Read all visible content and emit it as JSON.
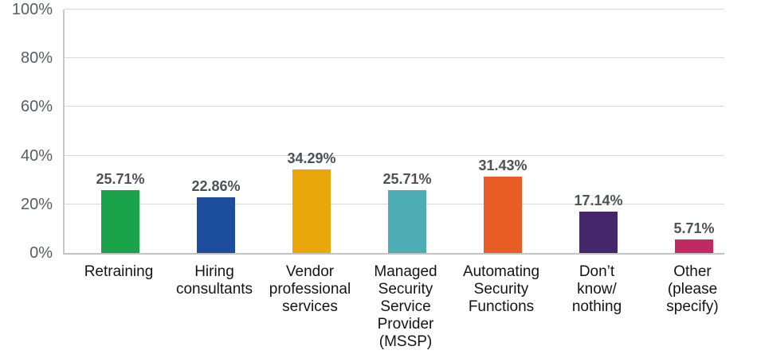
{
  "chart_data": {
    "type": "bar",
    "title": "",
    "xlabel": "",
    "ylabel": "",
    "categories": [
      "Retraining",
      "Hiring\nconsultants",
      "Vendor\nprofessional\nservices",
      "Managed\nSecurity\nService\nProvider\n(MSSP)",
      "Automating\nSecurity\nFunctions",
      "Don’t\nknow/\nnothing",
      "Other\n(please\nspecify)"
    ],
    "values": [
      25.71,
      22.86,
      34.29,
      25.71,
      31.43,
      17.14,
      5.71
    ],
    "value_labels": [
      "25.71%",
      "22.86%",
      "34.29%",
      "25.71%",
      "31.43%",
      "17.14%",
      "5.71%"
    ],
    "bar_colors": [
      "#1aa34b",
      "#1c4e9d",
      "#e9a70c",
      "#4eacb4",
      "#e85d25",
      "#44276b",
      "#c02a63"
    ],
    "ylim": [
      0,
      100
    ],
    "y_ticks": [
      "0%",
      "20%",
      "40%",
      "60%",
      "80%",
      "100%"
    ],
    "grid": "horizontal",
    "legend": "none"
  },
  "colors": {
    "background": "#ffffff",
    "gridline": "#d9d9d9",
    "axis_line": "#c2c2c2",
    "tick_label": "#595c63",
    "value_label": "#4e5257",
    "category_label": "#141414"
  }
}
